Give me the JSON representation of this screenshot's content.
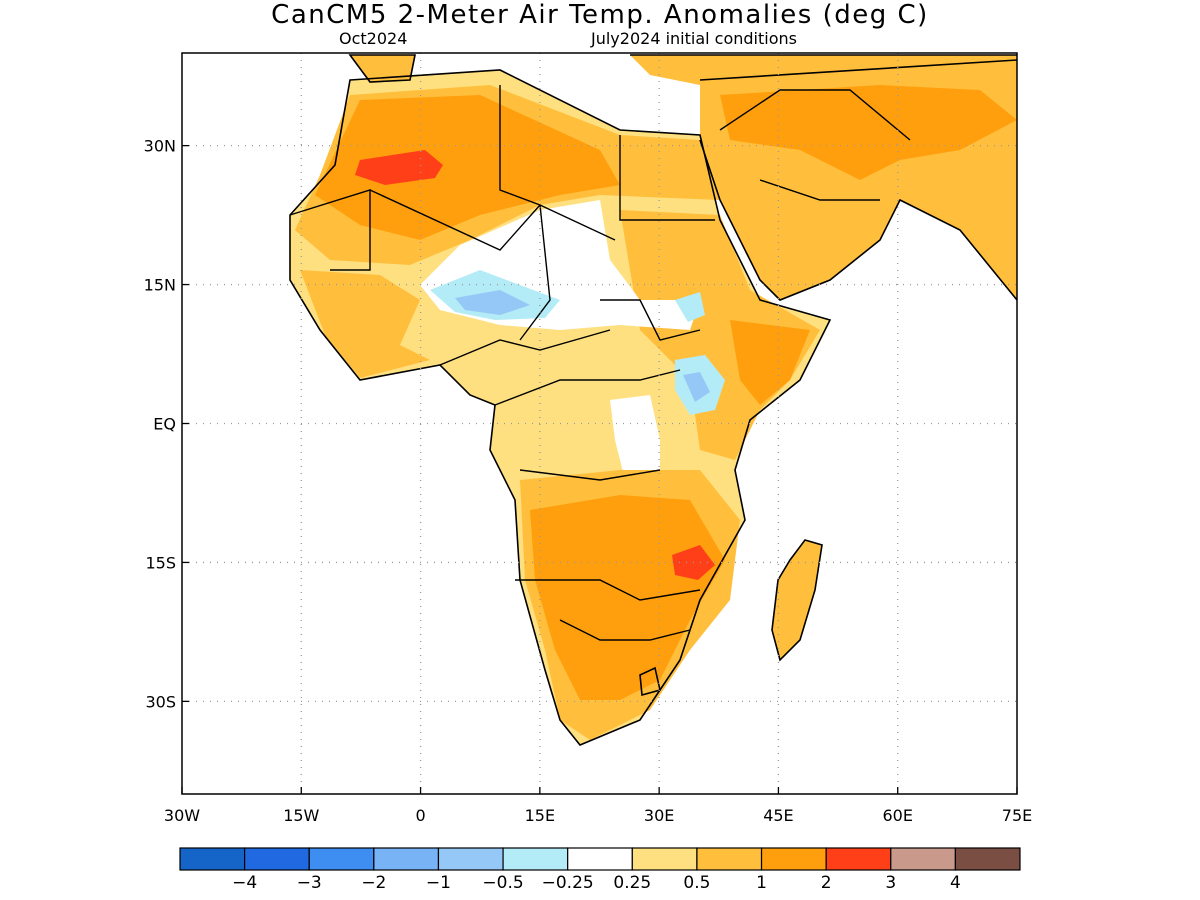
{
  "header": {
    "title": "CanCM5 2-Meter Air Temp. Anomalies (deg C)",
    "left_subtitle": "Oct2024",
    "right_subtitle": "July2024 initial conditions"
  },
  "map": {
    "lon_range": [
      -30,
      75
    ],
    "lat_range": [
      -40,
      40
    ],
    "lon_ticks": [
      "30W",
      "15W",
      "0",
      "15E",
      "30E",
      "45E",
      "60E",
      "75E"
    ],
    "lat_ticks": [
      "30N",
      "15N",
      "EQ",
      "15S",
      "30S"
    ],
    "gridlines": "dotted",
    "land_outline_color": "#000000"
  },
  "colorbar": {
    "colors": [
      "#1565c8",
      "#2069e0",
      "#3d8ef0",
      "#78b4f5",
      "#96c8f7",
      "#b3ecf6",
      "#ffffff",
      "#ffe081",
      "#ffbf3c",
      "#ff9f0d",
      "#ff3f17",
      "#c99a8c",
      "#7a4e42"
    ],
    "labels": [
      "−4",
      "−3",
      "−2",
      "−1",
      "−0.5",
      "−0.25",
      "0.25",
      "0.5",
      "1",
      "2",
      "3",
      "4"
    ]
  }
}
